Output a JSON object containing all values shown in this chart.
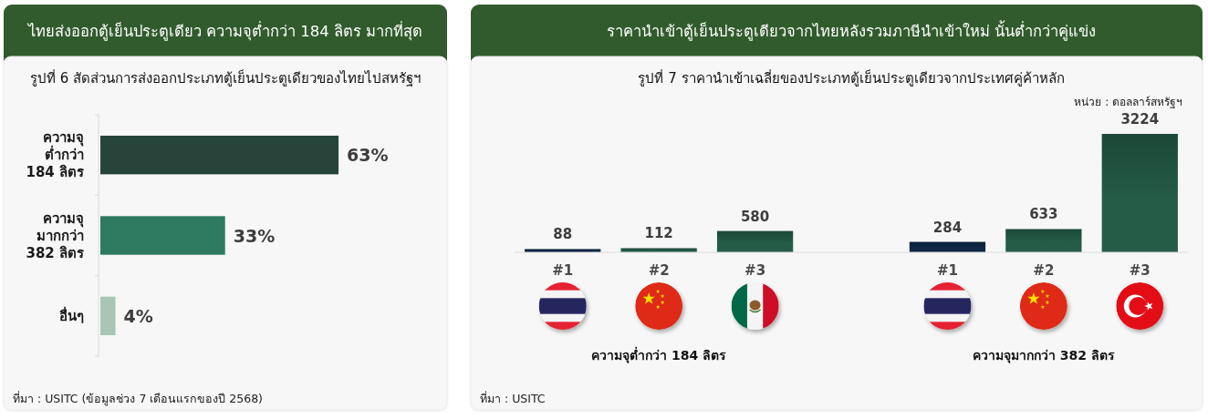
{
  "chart_data": [
    {
      "type": "bar",
      "orientation": "horizontal",
      "title": "ไทยส่งออกตู้เย็นประตูเดียว  ความจุต่ำกว่า 184 ลิตร มากที่สุด",
      "subtitle": "รูปที่ 6 สัดส่วนการส่งออกประเภทตู้เย็นประตูเดียวของไทยไปสหรัฐฯ",
      "categories": [
        "ความจุ\nต่ำกว่า\n184 ลิตร",
        "ความจุ\nมากกว่า\n382 ลิตร",
        "อื่นๆ"
      ],
      "values": [
        63,
        33,
        4
      ],
      "colors": [
        "#27443a",
        "#2e7a60",
        "#a9c5b6"
      ],
      "value_labels": [
        "63%",
        "33%",
        "4%"
      ],
      "annotations": [
        "ที่มา : USITC (ข้อมูลช่วง 7 เดือนแรกของปี 2568)"
      ]
    },
    {
      "type": "bar",
      "title": "ราคานำเข้าตู้เย็นประตูเดียวจากไทยหลังรวมภาษีนำเข้าใหม่ นั้นต่ำกว่าคู่แข่ง",
      "subtitle": "รูปที่ 7 ราคานำเข้าเฉลี่ยของประเภทตู้เย็นประตูเดียวจากประเทศคู่ค้าหลัก",
      "ylabel": "หน่วย : ดอลลาร์สหรัฐฯ",
      "categories": [
        "#1",
        "#2",
        "#3",
        null,
        "#1",
        "#2",
        "#3"
      ],
      "values": [
        88,
        112,
        580,
        null,
        284,
        633,
        3224
      ],
      "colors": [
        "#102745",
        "#245c47",
        "#245c47",
        null,
        "#102745",
        "#245c47",
        "#245c47"
      ],
      "data_labels": true,
      "annotations": [
        "ความจุต่ำกว่า 184 ลิตร",
        "ความจุมากกว่า 382 ลิตร",
        "ที่มา : USITC"
      ]
    }
  ]
}
